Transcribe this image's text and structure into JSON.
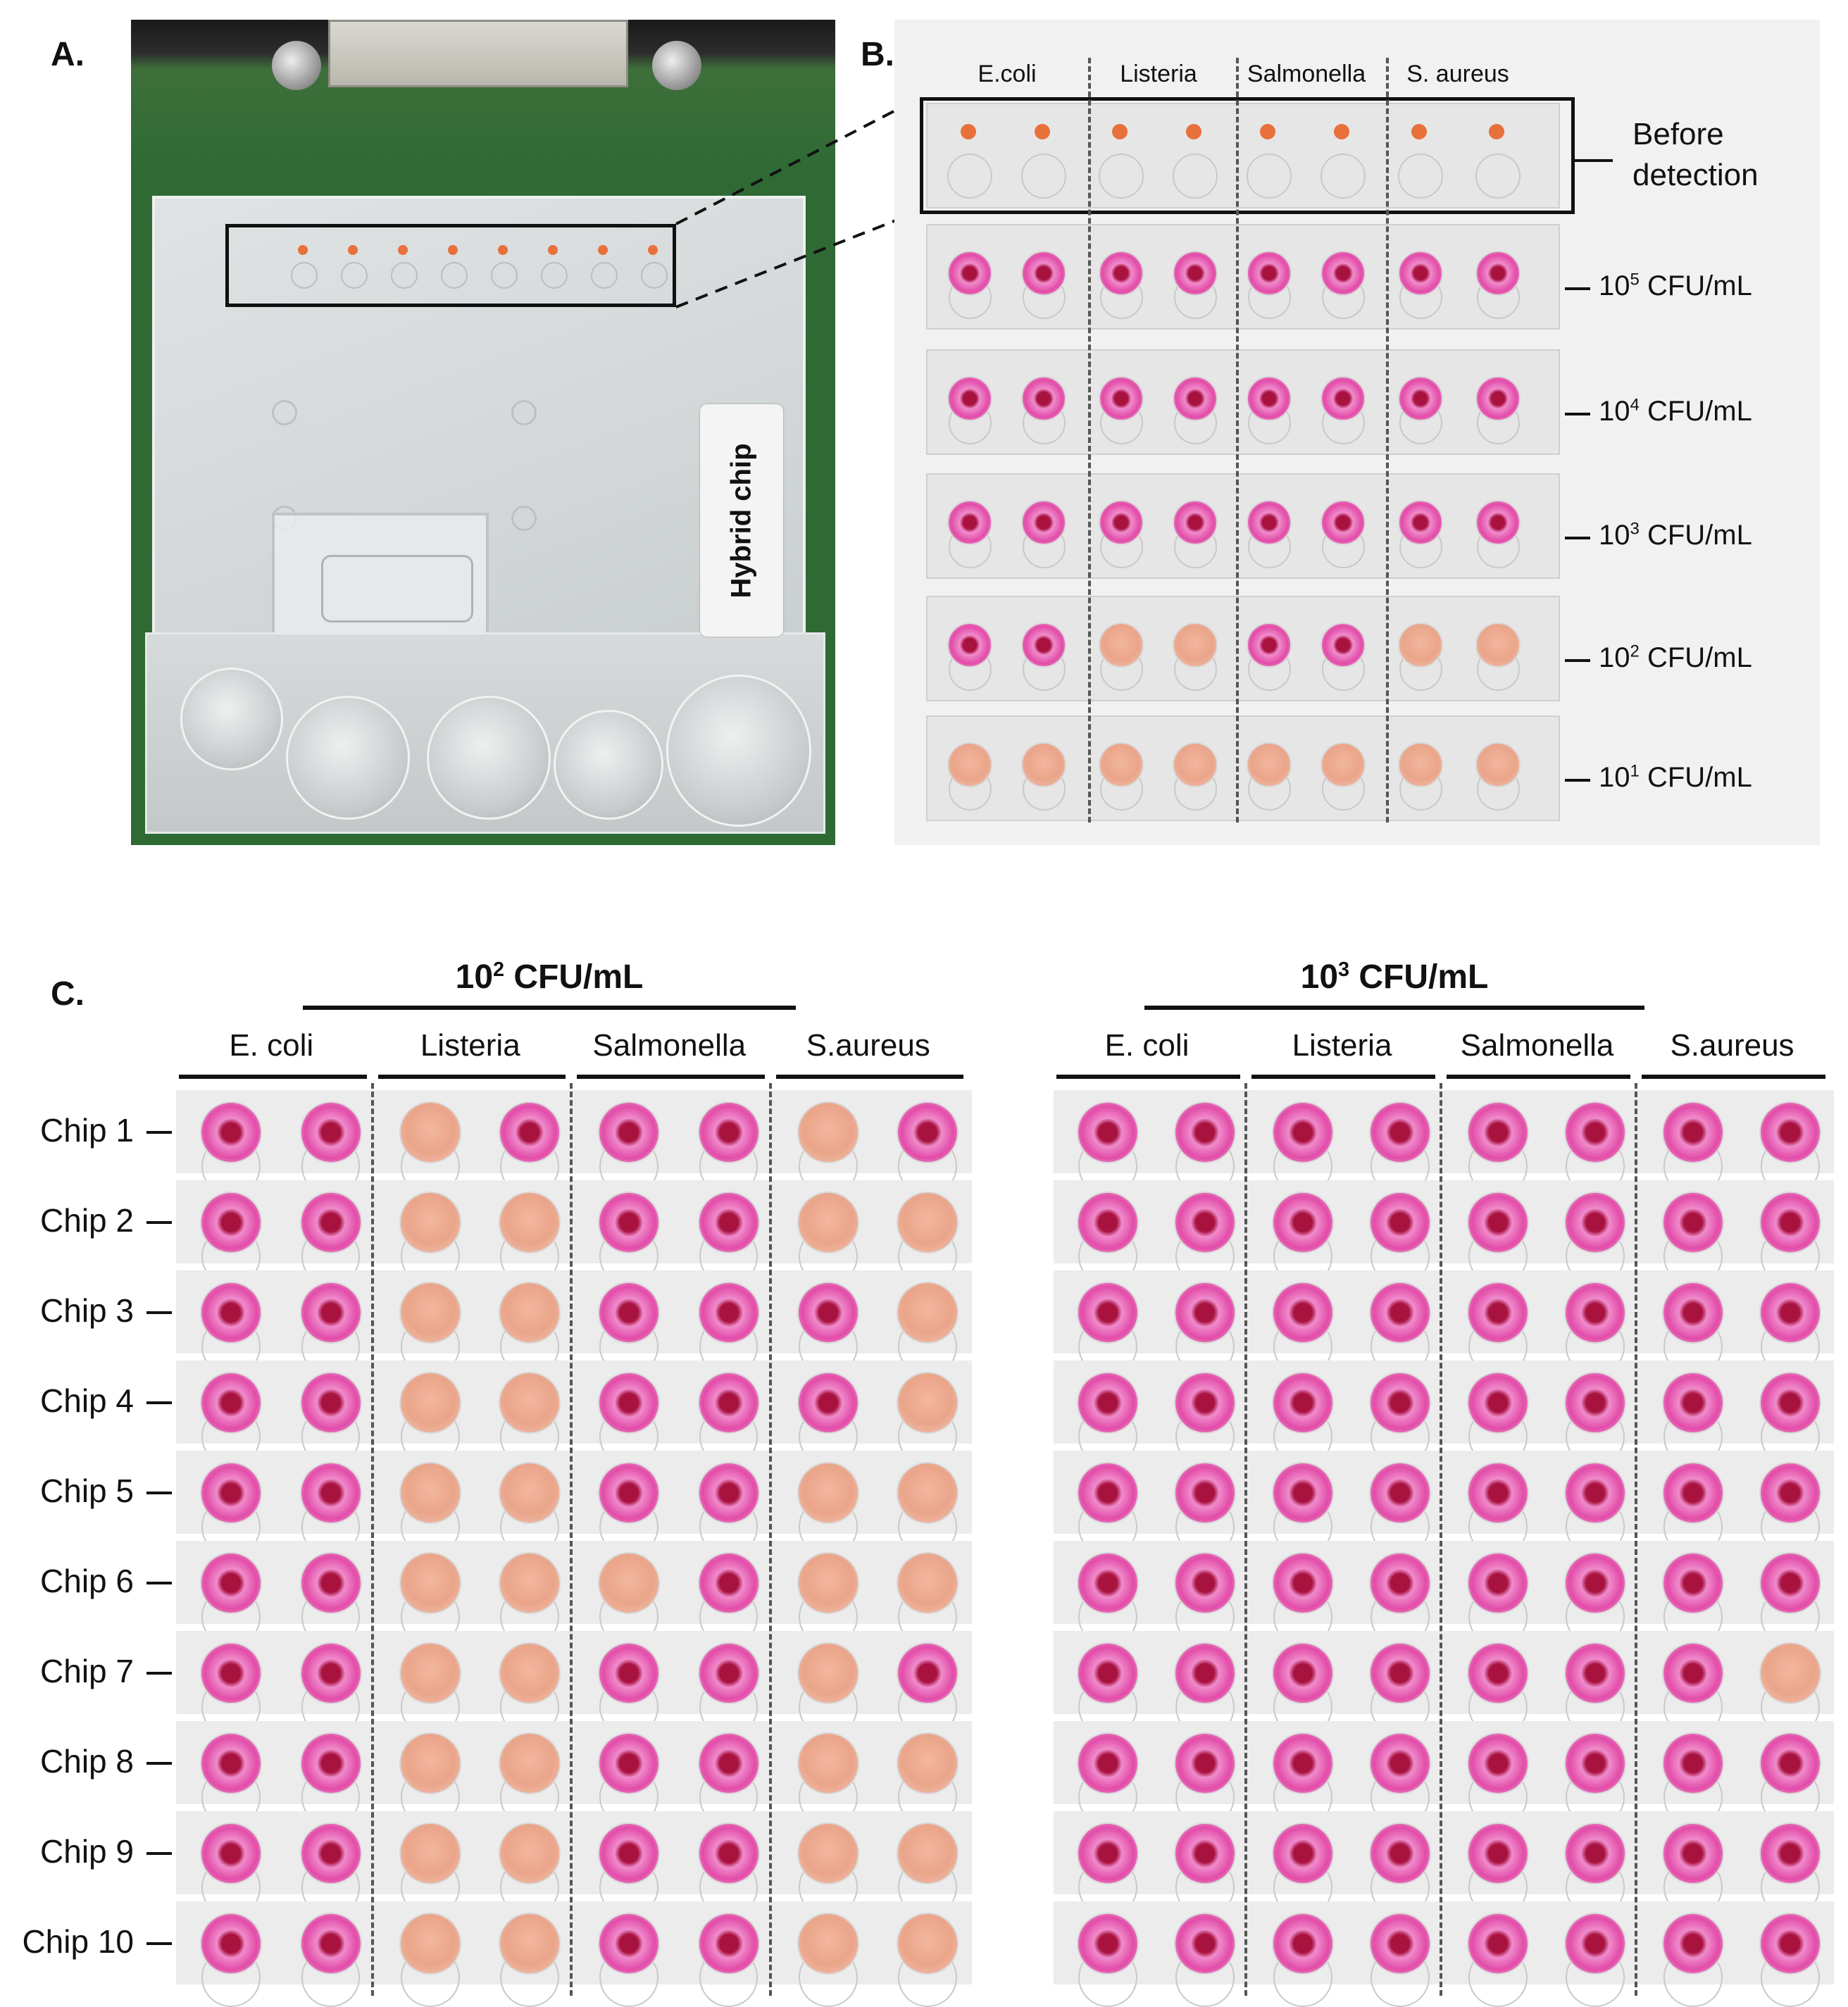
{
  "panels": {
    "a": {
      "letter": "A.",
      "chip_label": "Hybrid chip"
    },
    "b": {
      "letter": "B.",
      "species": [
        "E.coli",
        "Listeria",
        "Salmonella",
        "S. aureus"
      ],
      "before_label_line1": "Before",
      "before_label_line2": "detection",
      "rows": [
        {
          "base": "10",
          "exp": "5",
          "unit": " CFU/mL",
          "colors": [
            "pink",
            "pink",
            "pink",
            "pink"
          ]
        },
        {
          "base": "10",
          "exp": "4",
          "unit": " CFU/mL",
          "colors": [
            "pink",
            "pink",
            "pink",
            "pink"
          ]
        },
        {
          "base": "10",
          "exp": "3",
          "unit": " CFU/mL",
          "colors": [
            "pink",
            "pink",
            "pink",
            "pink"
          ]
        },
        {
          "base": "10",
          "exp": "2",
          "unit": " CFU/mL",
          "colors": [
            "pink",
            "orange",
            "pink",
            "orange"
          ]
        },
        {
          "base": "10",
          "exp": "1",
          "unit": " CFU/mL",
          "colors": [
            "orange",
            "orange",
            "orange",
            "orange"
          ]
        }
      ]
    },
    "c": {
      "letter": "C.",
      "groups": [
        {
          "base": "10",
          "exp": "2",
          "unit": " CFU/mL",
          "species": [
            "E. coli",
            "Listeria",
            "Salmonella",
            "S.aureus"
          ]
        },
        {
          "base": "10",
          "exp": "3",
          "unit": " CFU/mL",
          "species": [
            "E. coli",
            "Listeria",
            "Salmonella",
            "S.aureus"
          ]
        }
      ],
      "chips": [
        "Chip 1",
        "Chip 2",
        "Chip 3",
        "Chip 4",
        "Chip 5",
        "Chip 6",
        "Chip 7",
        "Chip 8",
        "Chip 9",
        "Chip 10"
      ],
      "grid_10_2": [
        "PPOPPPOP",
        "PPOOPPOO",
        "PPOOPPPO",
        "PPOOPPPO",
        "PPOOPPOO",
        "PPOOOPOO",
        "PPOOPPOP",
        "PPOOPPOO",
        "PPOOPPOO",
        "PPOOPPOO"
      ],
      "grid_10_3": [
        "PPPPPPPP",
        "PPPPPPPP",
        "PPPPPPPP",
        "PPPPPPPP",
        "PPPPPPPP",
        "PPPPPPPP",
        "PPPPPPPO",
        "PPPPPPPP",
        "PPPPPPPP",
        "PPPPPPPP"
      ]
    }
  },
  "colors": {
    "positive": "#e24ca8",
    "positive_dot": "#a8123f",
    "negative": "#eaa58a",
    "before_dot": "#e8703a"
  }
}
